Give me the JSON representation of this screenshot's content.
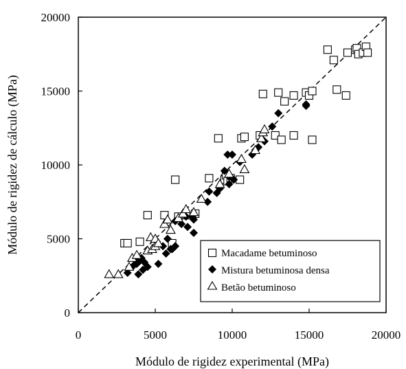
{
  "chart_data": {
    "type": "scatter",
    "xlabel": "Módulo de rigidez experimental (MPa)",
    "ylabel": "Módulo de rigidez de cálculo (MPa)",
    "xlim": [
      0,
      20000
    ],
    "ylim": [
      0,
      20000
    ],
    "x_ticks": [
      "0",
      "5000",
      "10000",
      "15000",
      "20000"
    ],
    "y_ticks": [
      "0",
      "5000",
      "10000",
      "15000",
      "20000"
    ],
    "grid": false,
    "reference_line": "y = x (dashed)",
    "legend_position": "bottom-right",
    "series": [
      {
        "name": "Macadame betuminoso",
        "marker": "open-square",
        "points": [
          [
            3000,
            4700
          ],
          [
            3200,
            4700
          ],
          [
            4000,
            4800
          ],
          [
            4500,
            6600
          ],
          [
            5600,
            6600
          ],
          [
            6100,
            4700
          ],
          [
            6300,
            9000
          ],
          [
            6500,
            6500
          ],
          [
            7000,
            6600
          ],
          [
            7600,
            6700
          ],
          [
            8500,
            9100
          ],
          [
            9100,
            11800
          ],
          [
            9500,
            9000
          ],
          [
            9600,
            9300
          ],
          [
            9700,
            8900
          ],
          [
            9900,
            9100
          ],
          [
            10500,
            9000
          ],
          [
            10600,
            11800
          ],
          [
            10800,
            11900
          ],
          [
            11800,
            12000
          ],
          [
            12000,
            14800
          ],
          [
            12800,
            12000
          ],
          [
            13000,
            14900
          ],
          [
            13200,
            11700
          ],
          [
            13400,
            14300
          ],
          [
            14000,
            14700
          ],
          [
            14000,
            12000
          ],
          [
            14800,
            14900
          ],
          [
            15000,
            14700
          ],
          [
            15200,
            11700
          ],
          [
            15200,
            15000
          ],
          [
            16200,
            17800
          ],
          [
            16600,
            17100
          ],
          [
            16800,
            15100
          ],
          [
            17400,
            14700
          ],
          [
            17500,
            17600
          ],
          [
            18000,
            17800
          ],
          [
            18100,
            17900
          ],
          [
            18200,
            17500
          ],
          [
            18500,
            17600
          ],
          [
            18700,
            18000
          ],
          [
            18800,
            17600
          ]
        ]
      },
      {
        "name": "Mistura betuminosa densa",
        "marker": "filled-diamond",
        "points": [
          [
            3200,
            2700
          ],
          [
            3600,
            3200
          ],
          [
            3700,
            3600
          ],
          [
            3800,
            3300
          ],
          [
            3900,
            2600
          ],
          [
            4000,
            3500
          ],
          [
            4100,
            3700
          ],
          [
            4200,
            2900
          ],
          [
            4300,
            3400
          ],
          [
            4500,
            3100
          ],
          [
            5000,
            4500
          ],
          [
            5100,
            4800
          ],
          [
            5200,
            3300
          ],
          [
            5500,
            4500
          ],
          [
            5700,
            4000
          ],
          [
            5800,
            5000
          ],
          [
            6000,
            4300
          ],
          [
            6100,
            4300
          ],
          [
            6300,
            4500
          ],
          [
            6300,
            6200
          ],
          [
            6700,
            6000
          ],
          [
            7000,
            6500
          ],
          [
            7100,
            5800
          ],
          [
            7400,
            6500
          ],
          [
            7500,
            6300
          ],
          [
            7500,
            5400
          ],
          [
            8400,
            7500
          ],
          [
            8500,
            8200
          ],
          [
            9000,
            8100
          ],
          [
            9200,
            8400
          ],
          [
            9500,
            9600
          ],
          [
            9700,
            10700
          ],
          [
            9800,
            8700
          ],
          [
            9800,
            9200
          ],
          [
            10000,
            10700
          ],
          [
            10100,
            9000
          ],
          [
            10500,
            10200
          ],
          [
            11300,
            10700
          ],
          [
            11500,
            11000
          ],
          [
            11700,
            11200
          ],
          [
            12100,
            11600
          ],
          [
            12600,
            12600
          ],
          [
            13000,
            13500
          ],
          [
            14800,
            14000
          ],
          [
            14800,
            14100
          ]
        ]
      },
      {
        "name": "Betão betuminoso",
        "marker": "open-triangle",
        "points": [
          [
            2000,
            2600
          ],
          [
            2600,
            2600
          ],
          [
            3300,
            3100
          ],
          [
            3500,
            3700
          ],
          [
            3800,
            3900
          ],
          [
            4500,
            4200
          ],
          [
            4700,
            5100
          ],
          [
            4800,
            4300
          ],
          [
            5000,
            4500
          ],
          [
            5000,
            5000
          ],
          [
            5200,
            4700
          ],
          [
            5600,
            6000
          ],
          [
            5800,
            6300
          ],
          [
            6000,
            5600
          ],
          [
            6500,
            6400
          ],
          [
            6800,
            6700
          ],
          [
            7000,
            7000
          ],
          [
            7500,
            6800
          ],
          [
            8000,
            7700
          ],
          [
            9200,
            8700
          ],
          [
            9800,
            9400
          ],
          [
            10600,
            10400
          ],
          [
            10800,
            9700
          ],
          [
            11500,
            11000
          ],
          [
            11900,
            11800
          ],
          [
            12000,
            12200
          ],
          [
            12100,
            12400
          ]
        ]
      }
    ]
  }
}
